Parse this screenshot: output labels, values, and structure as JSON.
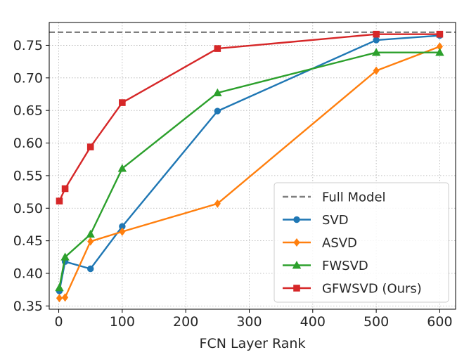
{
  "chart_data": {
    "type": "line",
    "title": "",
    "xlabel": "FCN Layer Rank",
    "ylabel": "",
    "xlim": [
      -15,
      625
    ],
    "ylim": [
      0.345,
      0.785
    ],
    "xticks": [
      0,
      100,
      200,
      300,
      400,
      500,
      600
    ],
    "xtick_labels": [
      "0",
      "100",
      "200",
      "300",
      "400",
      "500",
      "600"
    ],
    "yticks": [
      0.35,
      0.4,
      0.45,
      0.5,
      0.55,
      0.6,
      0.65,
      0.7,
      0.75
    ],
    "ytick_labels": [
      "0.35",
      "0.40",
      "0.45",
      "0.50",
      "0.55",
      "0.60",
      "0.65",
      "0.70",
      "0.75"
    ],
    "grid": true,
    "legend_position": "lower-right",
    "reference_line": {
      "name": "Full Model",
      "y": 0.77,
      "color": "#7f7f7f",
      "style": "dashed"
    },
    "series": [
      {
        "name": "SVD",
        "color": "#1f77b4",
        "marker": "circle",
        "x": [
          1,
          10,
          50,
          100,
          250,
          500,
          600
        ],
        "y": [
          0.373,
          0.418,
          0.407,
          0.472,
          0.649,
          0.758,
          0.765
        ]
      },
      {
        "name": "ASVD",
        "color": "#ff7f0e",
        "marker": "diamond",
        "x": [
          1,
          10,
          50,
          100,
          250,
          500,
          600
        ],
        "y": [
          0.362,
          0.363,
          0.449,
          0.464,
          0.507,
          0.711,
          0.748
        ]
      },
      {
        "name": "FWSVD",
        "color": "#2ca02c",
        "marker": "triangle",
        "x": [
          1,
          10,
          50,
          100,
          250,
          500,
          600
        ],
        "y": [
          0.378,
          0.425,
          0.46,
          0.561,
          0.677,
          0.739,
          0.739
        ]
      },
      {
        "name": "GFWSVD (Ours)",
        "color": "#d62728",
        "marker": "square",
        "x": [
          1,
          10,
          50,
          100,
          250,
          500,
          600
        ],
        "y": [
          0.511,
          0.53,
          0.594,
          0.662,
          0.745,
          0.767,
          0.767
        ]
      }
    ]
  }
}
